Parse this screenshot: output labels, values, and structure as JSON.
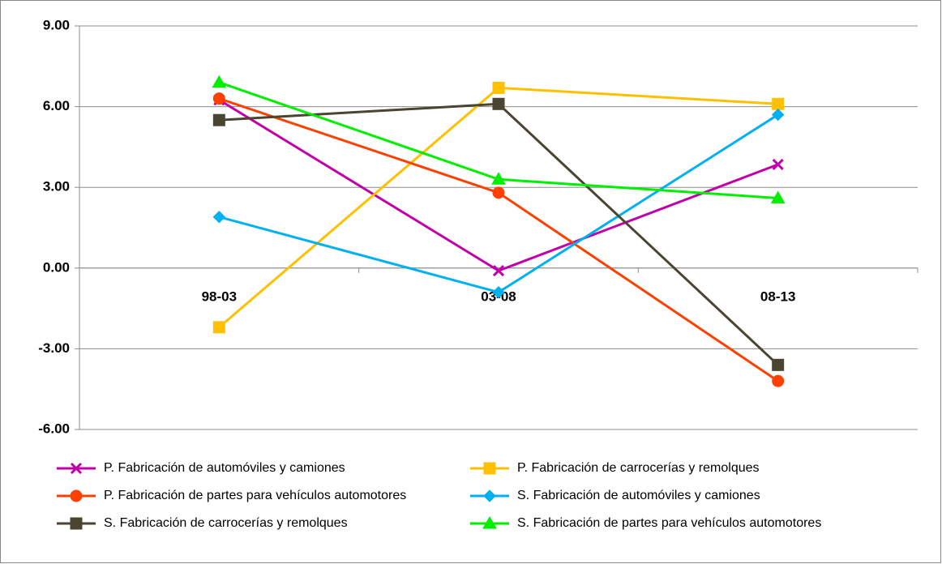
{
  "chart_data": {
    "type": "line",
    "categories": [
      "98-03",
      "03-08",
      "08-13"
    ],
    "series": [
      {
        "name": "P. Fabricación de automóviles y camiones",
        "color": "#c000a8",
        "marker": "x",
        "values": [
          6.25,
          -0.1,
          3.85
        ]
      },
      {
        "name": "P. Fabricación de carrocerías y remolques",
        "color": "#ffc000",
        "marker": "square",
        "values": [
          -2.2,
          6.7,
          6.1
        ]
      },
      {
        "name": "P. Fabricación de partes para vehículos automotores",
        "color": "#ff4000",
        "marker": "circle",
        "values": [
          6.3,
          2.8,
          -4.2
        ]
      },
      {
        "name": "S. Fabricación de automóviles y camiones",
        "color": "#00b0f0",
        "marker": "diamond",
        "values": [
          1.9,
          -0.9,
          5.7
        ]
      },
      {
        "name": "S. Fabricación de carrocerías y remolques",
        "color": "#4a4530",
        "marker": "square",
        "values": [
          5.5,
          6.1,
          -3.6
        ]
      },
      {
        "name": "S. Fabricación de partes para vehículos automotores",
        "color": "#00ee00",
        "marker": "triangle",
        "values": [
          6.9,
          3.3,
          2.6
        ]
      }
    ],
    "ylim": [
      -6,
      9
    ],
    "yticks": [
      {
        "value": -6,
        "label": "-6.00"
      },
      {
        "value": -3,
        "label": "-3.00"
      },
      {
        "value": 0,
        "label": "0.00"
      },
      {
        "value": 3,
        "label": "3.00"
      },
      {
        "value": 6,
        "label": "6.00"
      },
      {
        "value": 9,
        "label": "9.00"
      }
    ],
    "grid": true,
    "legend": "bottom"
  }
}
